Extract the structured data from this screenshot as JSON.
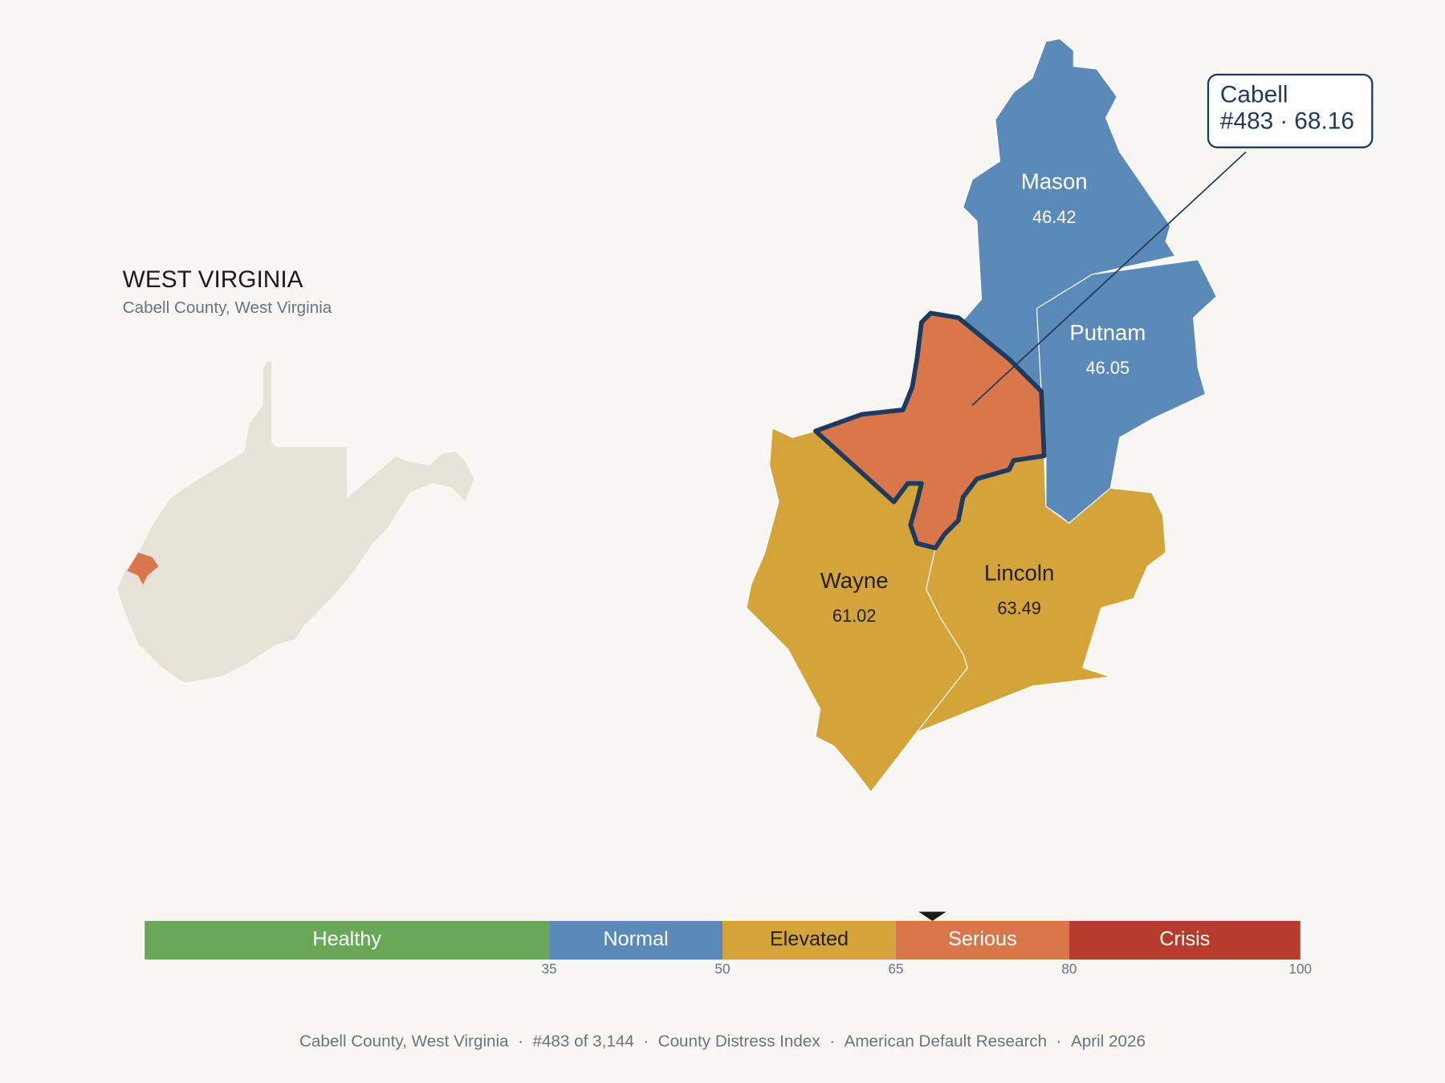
{
  "header": {
    "title": "WEST VIRGINIA",
    "subtitle": "Cabell County, West Virginia"
  },
  "map": {
    "counties": [
      {
        "name": "Mason",
        "value": 46.42
      },
      {
        "name": "Putnam",
        "value": 46.05
      },
      {
        "name": "Wayne",
        "value": 61.02
      },
      {
        "name": "Lincoln",
        "value": 63.49
      },
      {
        "name": "Cabell",
        "value": 68.16
      }
    ],
    "callout": {
      "name": "Cabell",
      "rank": "#483",
      "separator": "·",
      "value": 68.16
    }
  },
  "scale": {
    "xlim": [
      0,
      100
    ],
    "xticks": [
      35,
      50,
      65,
      80,
      100
    ],
    "bands": [
      {
        "name": "Healthy",
        "color": "#68a857",
        "text_color": "#ffffff"
      },
      {
        "name": "Normal",
        "color": "#5b89b8",
        "text_color": "#ffffff"
      },
      {
        "name": "Elevated",
        "color": "#d4a33a",
        "text_color": "#1f1f1f"
      },
      {
        "name": "Serious",
        "color": "#d9774a",
        "text_color": "#ffffff"
      },
      {
        "name": "Crisis",
        "color": "#b83c2d",
        "text_color": "#ffffff"
      }
    ]
  },
  "footer": {
    "items": [
      "Cabell County, West Virginia",
      "#483 of 3,144",
      "County Distress Index",
      "American Default Research",
      "April 2026"
    ],
    "separator": "·"
  }
}
